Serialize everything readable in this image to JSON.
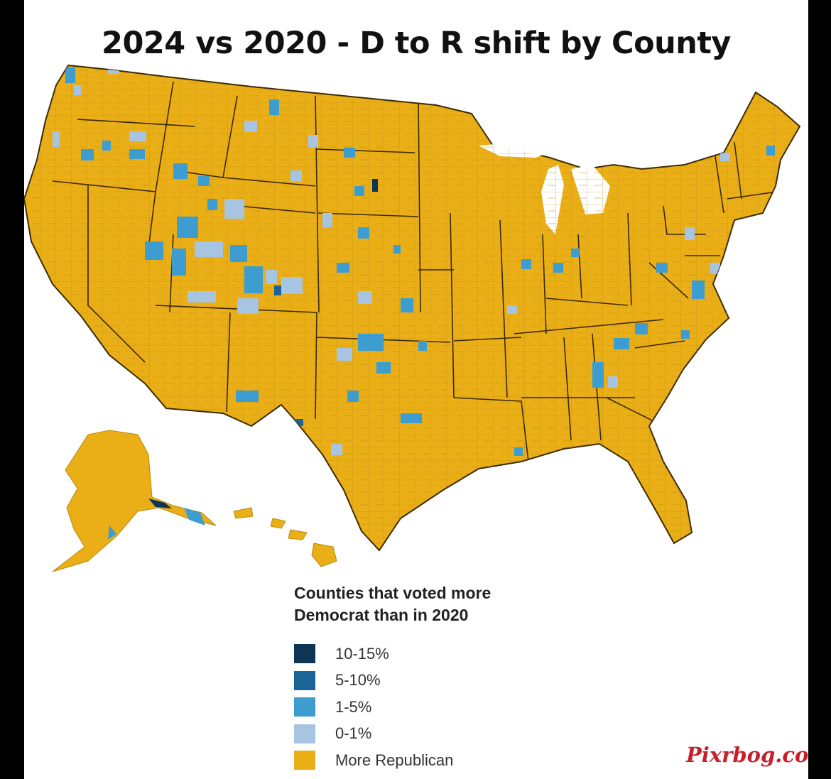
{
  "title": "2024 vs 2020 - D to R shift by County",
  "legend": {
    "title_line1": "Counties that voted more",
    "title_line2": "Democrat than in 2020",
    "items": [
      {
        "label": "10-15%",
        "color": "#0d3655"
      },
      {
        "label": "5-10%",
        "color": "#1a6496"
      },
      {
        "label": "1-5%",
        "color": "#3d9dd0"
      },
      {
        "label": "0-1%",
        "color": "#a7c4e2"
      },
      {
        "label": "More Republican",
        "color": "#eaae17"
      }
    ]
  },
  "colors": {
    "republican": "#eaae17",
    "state_border": "#3a2a05",
    "county_line": "#b88a10",
    "background": "#ffffff",
    "frame": "#000000"
  },
  "watermark": "Pixrbog.com"
}
